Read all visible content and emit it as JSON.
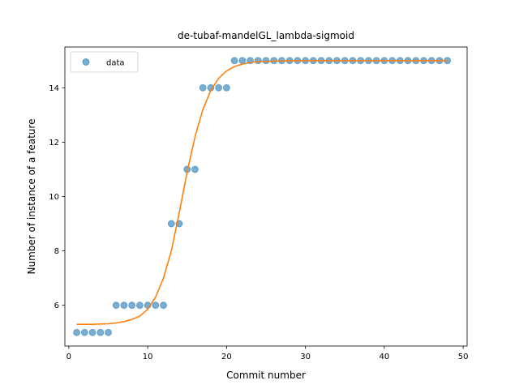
{
  "chart_data": {
    "type": "scatter",
    "title": "de-tubaf-mandelGL_lambda-sigmoid",
    "xlabel": "Commit number",
    "ylabel": "Number of instance of a feature",
    "xlim": [
      -0.5,
      50.5
    ],
    "ylim": [
      4.5,
      15.5
    ],
    "xticks": [
      0,
      10,
      20,
      30,
      40,
      50
    ],
    "yticks": [
      6,
      8,
      10,
      12,
      14
    ],
    "grid": false,
    "legend": {
      "position": "top-left",
      "entries": [
        "data"
      ]
    },
    "series": [
      {
        "name": "data",
        "kind": "scatter",
        "color": "#1f77b4",
        "x": [
          1,
          2,
          3,
          4,
          5,
          6,
          7,
          8,
          9,
          10,
          11,
          12,
          13,
          14,
          15,
          16,
          17,
          18,
          19,
          20,
          21,
          22,
          23,
          24,
          25,
          26,
          27,
          28,
          29,
          30,
          31,
          32,
          33,
          34,
          35,
          36,
          37,
          38,
          39,
          40,
          41,
          42,
          43,
          44,
          45,
          46,
          47,
          48
        ],
        "y": [
          5,
          5,
          5,
          5,
          5,
          6,
          6,
          6,
          6,
          6,
          6,
          6,
          9,
          9,
          11,
          11,
          14,
          14,
          14,
          14,
          15,
          15,
          15,
          15,
          15,
          15,
          15,
          15,
          15,
          15,
          15,
          15,
          15,
          15,
          15,
          15,
          15,
          15,
          15,
          15,
          15,
          15,
          15,
          15,
          15,
          15,
          15,
          15
        ]
      },
      {
        "kind": "line",
        "color": "#ff7f0e",
        "x": [
          1,
          2,
          3,
          4,
          5,
          6,
          7,
          8,
          9,
          10,
          11,
          12,
          13,
          14,
          15,
          16,
          17,
          18,
          19,
          20,
          21,
          22,
          23,
          24,
          25,
          26,
          27,
          28,
          29,
          30,
          31,
          32,
          33,
          34,
          35,
          36,
          37,
          38,
          39,
          40,
          41,
          42,
          43,
          44,
          45,
          46,
          47,
          48
        ],
        "y": [
          5.3,
          5.3,
          5.3,
          5.31,
          5.32,
          5.35,
          5.4,
          5.48,
          5.6,
          5.85,
          6.3,
          7.0,
          8.0,
          9.4,
          10.9,
          12.2,
          13.2,
          13.9,
          14.35,
          14.62,
          14.78,
          14.87,
          14.93,
          14.96,
          14.97,
          14.98,
          14.99,
          14.99,
          15,
          15,
          15,
          15,
          15,
          15,
          15,
          15,
          15,
          15,
          15,
          15,
          15,
          15,
          15,
          15,
          15,
          15,
          15,
          15
        ]
      }
    ]
  }
}
